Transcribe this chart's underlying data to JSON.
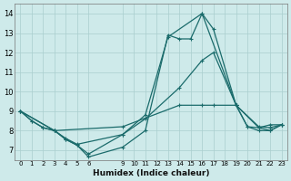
{
  "background_color": "#ceeaea",
  "grid_color": "#aacece",
  "line_color": "#1a6b6b",
  "xlabel": "Humidex (Indice chaleur)",
  "xlim": [
    -0.5,
    23.5
  ],
  "ylim": [
    6.5,
    14.5
  ],
  "yticks": [
    7,
    8,
    9,
    10,
    11,
    12,
    13,
    14
  ],
  "xticks": [
    0,
    1,
    2,
    3,
    4,
    5,
    6,
    9,
    10,
    11,
    12,
    13,
    14,
    15,
    16,
    17,
    18,
    19,
    20,
    21,
    22,
    23
  ],
  "series": [
    {
      "x": [
        0,
        1,
        2,
        3,
        9,
        14,
        16,
        17,
        19,
        21,
        22,
        23
      ],
      "y": [
        9.0,
        8.5,
        8.15,
        8.0,
        8.2,
        9.3,
        9.3,
        9.3,
        9.3,
        8.2,
        8.15,
        8.3
      ],
      "style": "-",
      "marker": "+"
    },
    {
      "x": [
        0,
        1,
        2,
        3,
        4,
        5,
        9,
        11,
        14,
        16,
        17,
        19,
        20,
        21,
        22,
        23
      ],
      "y": [
        9.0,
        8.5,
        8.15,
        8.0,
        7.6,
        7.3,
        7.8,
        8.6,
        10.2,
        11.6,
        12.0,
        9.3,
        8.2,
        8.15,
        8.3,
        8.3
      ],
      "style": "-",
      "marker": "+"
    },
    {
      "x": [
        0,
        3,
        4,
        5,
        6,
        9,
        11,
        13,
        16,
        19,
        21,
        22,
        23
      ],
      "y": [
        9.0,
        8.0,
        7.55,
        7.25,
        6.8,
        7.8,
        8.8,
        12.8,
        14.0,
        9.3,
        8.15,
        8.0,
        8.3
      ],
      "style": "-",
      "marker": "+"
    },
    {
      "x": [
        0,
        3,
        4,
        5,
        6,
        9,
        11,
        13,
        14,
        15,
        16,
        17,
        19,
        20,
        21,
        22,
        23
      ],
      "y": [
        9.0,
        8.0,
        7.55,
        7.25,
        6.65,
        7.15,
        8.0,
        12.9,
        12.7,
        12.7,
        14.0,
        13.2,
        9.3,
        8.2,
        8.0,
        8.0,
        8.3
      ],
      "style": "-",
      "marker": "+"
    }
  ]
}
